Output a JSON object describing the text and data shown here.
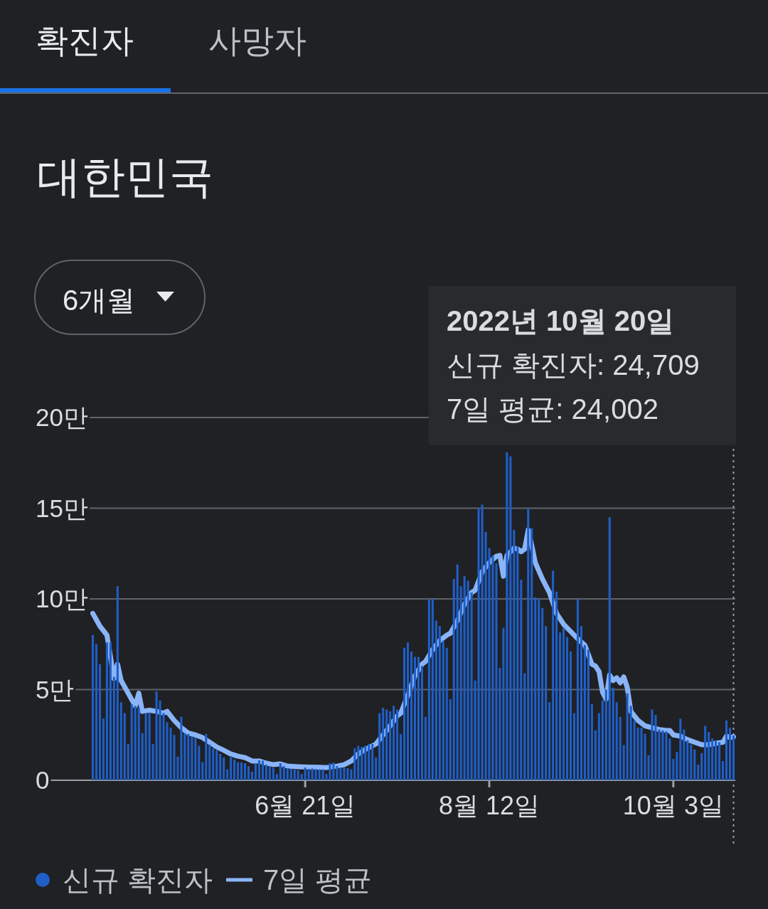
{
  "chart_data": {
    "type": "bar",
    "title": "대한민국",
    "annotations": [
      "확진자",
      "사망자",
      "6개월",
      "2022년 10월 20일",
      "신규 확진자: 24,709",
      "7일 평균: 24,002"
    ],
    "x": [
      "2022-04-22",
      "2022-04-23",
      "2022-04-24",
      "2022-04-25",
      "2022-04-26",
      "2022-04-27",
      "2022-04-28",
      "2022-04-29",
      "2022-04-30",
      "2022-05-01",
      "2022-05-02",
      "2022-05-03",
      "2022-05-04",
      "2022-05-05",
      "2022-05-06",
      "2022-05-07",
      "2022-05-08",
      "2022-05-09",
      "2022-05-10",
      "2022-05-11",
      "2022-05-12",
      "2022-05-13",
      "2022-05-14",
      "2022-05-15",
      "2022-05-16",
      "2022-05-17",
      "2022-05-18",
      "2022-05-19",
      "2022-05-20",
      "2022-05-21",
      "2022-05-22",
      "2022-05-23",
      "2022-05-24",
      "2022-05-25",
      "2022-05-26",
      "2022-05-27",
      "2022-05-28",
      "2022-05-29",
      "2022-05-30",
      "2022-05-31",
      "2022-06-01",
      "2022-06-02",
      "2022-06-03",
      "2022-06-04",
      "2022-06-05",
      "2022-06-06",
      "2022-06-07",
      "2022-06-08",
      "2022-06-09",
      "2022-06-10",
      "2022-06-11",
      "2022-06-12",
      "2022-06-13",
      "2022-06-14",
      "2022-06-15",
      "2022-06-16",
      "2022-06-17",
      "2022-06-18",
      "2022-06-19",
      "2022-06-20",
      "2022-06-21",
      "2022-06-22",
      "2022-06-23",
      "2022-06-24",
      "2022-06-25",
      "2022-06-26",
      "2022-06-27",
      "2022-06-28",
      "2022-06-29",
      "2022-06-30",
      "2022-07-01",
      "2022-07-02",
      "2022-07-03",
      "2022-07-04",
      "2022-07-05",
      "2022-07-06",
      "2022-07-07",
      "2022-07-08",
      "2022-07-09",
      "2022-07-10",
      "2022-07-11",
      "2022-07-12",
      "2022-07-13",
      "2022-07-14",
      "2022-07-15",
      "2022-07-16",
      "2022-07-17",
      "2022-07-18",
      "2022-07-19",
      "2022-07-20",
      "2022-07-21",
      "2022-07-22",
      "2022-07-23",
      "2022-07-24",
      "2022-07-25",
      "2022-07-26",
      "2022-07-27",
      "2022-07-28",
      "2022-07-29",
      "2022-07-30",
      "2022-07-31",
      "2022-08-01",
      "2022-08-02",
      "2022-08-03",
      "2022-08-04",
      "2022-08-05",
      "2022-08-06",
      "2022-08-07",
      "2022-08-08",
      "2022-08-09",
      "2022-08-10",
      "2022-08-11",
      "2022-08-12",
      "2022-08-13",
      "2022-08-14",
      "2022-08-15",
      "2022-08-16",
      "2022-08-17",
      "2022-08-18",
      "2022-08-19",
      "2022-08-20",
      "2022-08-21",
      "2022-08-22",
      "2022-08-23",
      "2022-08-24",
      "2022-08-25",
      "2022-08-26",
      "2022-08-27",
      "2022-08-28",
      "2022-08-29",
      "2022-08-30",
      "2022-08-31",
      "2022-09-01",
      "2022-09-02",
      "2022-09-03",
      "2022-09-04",
      "2022-09-05",
      "2022-09-06",
      "2022-09-07",
      "2022-09-08",
      "2022-09-09",
      "2022-09-10",
      "2022-09-11",
      "2022-09-12",
      "2022-09-13",
      "2022-09-14",
      "2022-09-15",
      "2022-09-16",
      "2022-09-17",
      "2022-09-18",
      "2022-09-19",
      "2022-09-20",
      "2022-09-21",
      "2022-09-22",
      "2022-09-23",
      "2022-09-24",
      "2022-09-25",
      "2022-09-26",
      "2022-09-27",
      "2022-09-28",
      "2022-09-29",
      "2022-09-30",
      "2022-10-01",
      "2022-10-02",
      "2022-10-03",
      "2022-10-04",
      "2022-10-05",
      "2022-10-06",
      "2022-10-07",
      "2022-10-08",
      "2022-10-09",
      "2022-10-10",
      "2022-10-11",
      "2022-10-12",
      "2022-10-13",
      "2022-10-14",
      "2022-10-15",
      "2022-10-16",
      "2022-10-17",
      "2022-10-18",
      "2022-10-19",
      "2022-10-20"
    ],
    "series": [
      {
        "name": "신규 확진자",
        "color": "#1f5fc7",
        "values": [
          8,
          7.5,
          6.4,
          3.4,
          7.6,
          7.6,
          5.7,
          10.7,
          4.3,
          3.7,
          2,
          4.2,
          4.1,
          4,
          2.6,
          3.7,
          3.7,
          2,
          4.9,
          4.4,
          3.7,
          3.2,
          2.9,
          2.5,
          1.3,
          3.5,
          2.6,
          2.55,
          2.4,
          2.35,
          1.9,
          1,
          2.55,
          1.96,
          1.76,
          1.65,
          1.45,
          1.25,
          0.6,
          1.33,
          1.14,
          1,
          0.98,
          0.94,
          0.78,
          0.47,
          0.94,
          1.1,
          1.08,
          0.86,
          0.78,
          0.67,
          0.35,
          0.94,
          0.78,
          0.67,
          0.63,
          0.59,
          0.55,
          0.35,
          0.7,
          0.63,
          0.65,
          0.62,
          0.6,
          0.6,
          0.35,
          0.94,
          0.98,
          0.78,
          0.7,
          0.7,
          0.67,
          0.6,
          1.76,
          1.9,
          1.84,
          1.9,
          2,
          2,
          1.25,
          3.7,
          4,
          3.9,
          3.8,
          4.1,
          3.9,
          2.55,
          7.3,
          7.6,
          7.1,
          6.8,
          6.8,
          6.3,
          3.5,
          9.96,
          10,
          8.8,
          8.5,
          7.7,
          7.3,
          4.47,
          11.1,
          11.9,
          10.7,
          11.25,
          11,
          10.35,
          5.5,
          15,
          15.2,
          13.7,
          12.8,
          12.4,
          11.96,
          6.2,
          8.4,
          18.08,
          17.86,
          13.8,
          12.9,
          11.06,
          5.9,
          15,
          13.9,
          10.08,
          10,
          9.5,
          8.5,
          4.3,
          11.56,
          10.4,
          8.15,
          8.4,
          7.9,
          7.1,
          3.7,
          9.98,
          8.5,
          7.45,
          7.2,
          4.2,
          2.75,
          3.7,
          4.4,
          5,
          14.5,
          5.1,
          4.3,
          3.5,
          1.94,
          4.8,
          4.1,
          3.3,
          2.9,
          2.9,
          2.56,
          1.38,
          3.9,
          3.6,
          2.8,
          2.75,
          2.7,
          2.3,
          1.18,
          1.57,
          3.4,
          2.8,
          2.2,
          1.97,
          1.7,
          0.86,
          1.5,
          3,
          2.66,
          2.3,
          2.17,
          2.1,
          1.06,
          3.3,
          2.9,
          2.47
        ]
      },
      {
        "name": "7일 평균",
        "type": "line",
        "color": "#8ab4f8",
        "x": [
          "2022-04-22",
          "2022-04-24",
          "2022-04-26",
          "2022-04-28",
          "2022-04-29",
          "2022-04-30",
          "2022-05-02",
          "2022-05-04",
          "2022-05-05",
          "2022-05-06",
          "2022-05-08",
          "2022-05-10",
          "2022-05-12",
          "2022-05-13",
          "2022-05-15",
          "2022-05-17",
          "2022-05-19",
          "2022-05-21",
          "2022-05-23",
          "2022-05-25",
          "2022-05-27",
          "2022-05-29",
          "2022-05-31",
          "2022-06-02",
          "2022-06-04",
          "2022-06-06",
          "2022-06-08",
          "2022-06-10",
          "2022-06-12",
          "2022-06-14",
          "2022-06-16",
          "2022-06-19",
          "2022-06-22",
          "2022-06-25",
          "2022-06-27",
          "2022-06-30",
          "2022-07-02",
          "2022-07-04",
          "2022-07-06",
          "2022-07-08",
          "2022-07-10",
          "2022-07-11",
          "2022-07-13",
          "2022-07-15",
          "2022-07-17",
          "2022-07-18",
          "2022-07-20",
          "2022-07-22",
          "2022-07-24",
          "2022-07-25",
          "2022-07-27",
          "2022-07-29",
          "2022-07-31",
          "2022-08-01",
          "2022-08-03",
          "2022-08-05",
          "2022-08-07",
          "2022-08-08",
          "2022-08-10",
          "2022-08-12",
          "2022-08-14",
          "2022-08-15",
          "2022-08-16",
          "2022-08-17",
          "2022-08-18",
          "2022-08-19",
          "2022-08-20",
          "2022-08-21",
          "2022-08-22",
          "2022-08-23",
          "2022-08-24",
          "2022-08-25",
          "2022-08-27",
          "2022-08-29",
          "2022-08-31",
          "2022-09-02",
          "2022-09-04",
          "2022-09-06",
          "2022-09-08",
          "2022-09-10",
          "2022-09-11",
          "2022-09-12",
          "2022-09-13",
          "2022-09-14",
          "2022-09-15",
          "2022-09-16",
          "2022-09-17",
          "2022-09-18",
          "2022-09-19",
          "2022-09-20",
          "2022-09-21",
          "2022-09-23",
          "2022-09-25",
          "2022-09-27",
          "2022-09-29",
          "2022-10-01",
          "2022-10-02",
          "2022-10-03",
          "2022-10-05",
          "2022-10-07",
          "2022-10-09",
          "2022-10-11",
          "2022-10-13",
          "2022-10-15",
          "2022-10-17",
          "2022-10-18",
          "2022-10-19",
          "2022-10-20"
        ],
        "values": [
          9.2,
          8.5,
          8,
          5.6,
          6.4,
          5.5,
          4.8,
          4.1,
          4.8,
          3.8,
          3.86,
          3.8,
          3.7,
          3.8,
          3.3,
          2.9,
          2.6,
          2.5,
          2.35,
          2.1,
          1.84,
          1.65,
          1.45,
          1.33,
          1.25,
          1.06,
          1.06,
          0.94,
          0.86,
          0.9,
          0.78,
          0.75,
          0.73,
          0.72,
          0.7,
          0.78,
          0.86,
          1.06,
          1.45,
          1.7,
          1.9,
          2,
          2.5,
          3,
          3.55,
          3.7,
          4.7,
          5.76,
          6.4,
          6.55,
          7.2,
          7.7,
          8,
          8.1,
          8.8,
          9.7,
          10.35,
          10.47,
          11.5,
          12,
          12.35,
          12.4,
          11.25,
          12.4,
          12.6,
          12.8,
          12.75,
          12.6,
          12.75,
          13.8,
          12.95,
          12,
          11.1,
          10.35,
          9.2,
          8.6,
          8.2,
          7.8,
          7.45,
          6.4,
          6.3,
          6,
          4.86,
          4.47,
          5.8,
          5.5,
          5.65,
          5.37,
          5.7,
          5.1,
          3.8,
          3.3,
          3,
          2.9,
          2.8,
          2.75,
          2.75,
          2.5,
          2.43,
          2.24,
          2.1,
          1.96,
          1.96,
          2.04,
          2.1,
          2.43,
          2.35,
          2.4
        ]
      }
    ],
    "xlim": [
      "2022-04-21T12:00",
      "2022-10-20T12:00"
    ],
    "xticks": [
      {
        "value": "2022-06-21",
        "label": "6월 21일"
      },
      {
        "value": "2022-08-12",
        "label": "8월 12일"
      },
      {
        "value": "2022-10-03",
        "label": "10월 3일"
      }
    ],
    "ylim": [
      0,
      20
    ],
    "yticks": [
      0,
      {
        "value": 5,
        "label": "5만"
      },
      {
        "value": 10,
        "label": "10만"
      },
      {
        "value": 15,
        "label": "15만"
      },
      {
        "value": 20,
        "label": "20만"
      }
    ],
    "grid": "y",
    "legend": "bottom",
    "line_style": "solid",
    "ref_lines": [
      {
        "axis": "x",
        "value": "2022-10-20",
        "color": "#9aa0a6",
        "line_style": "dotted"
      }
    ]
  }
}
